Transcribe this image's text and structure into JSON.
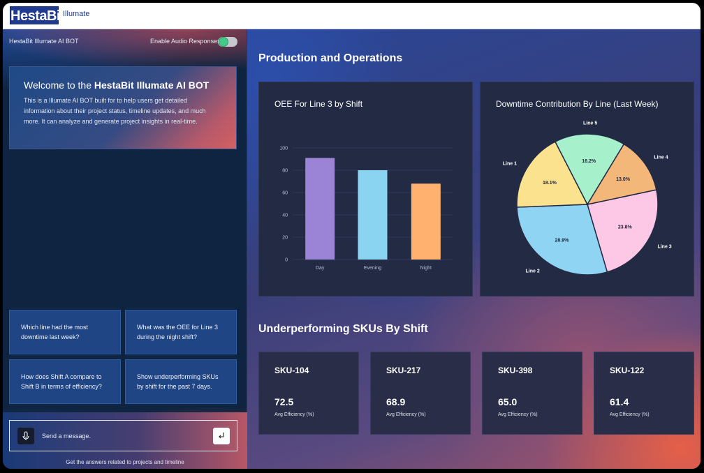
{
  "header": {
    "logo_text": "HestaBit",
    "product_name": "Illumate"
  },
  "chat": {
    "bot_name": "HestaBit Illumate AI BOT",
    "audio_label": "Enable Audio Responses",
    "audio_enabled": true,
    "welcome_prefix": "Welcome to the ",
    "welcome_brand": "HestaBit Illumate AI BOT",
    "welcome_body": "This is a Illumate AI BOT built for to help users get detailed information about their project status, timeline updates, and much more. It can analyze and generate project insights in real-time.",
    "suggestions": [
      "Which line had the most downtime last week?",
      "What was the OEE for Line 3 during the night shift?",
      "How does Shift A compare to Shift B in terms of efficiency?",
      "Show underperforming SKUs by shift for the past 7 days."
    ],
    "input_placeholder": "Send a message.",
    "hint": "Get the answers related to projects and timeline",
    "icons": {
      "mic": "microphone-icon",
      "send": "enter-arrow-icon"
    }
  },
  "main": {
    "section1_title": "Production and Operations",
    "section2_title": "Underperforming SKUs By Shift",
    "bar_title": "OEE For Line 3 by Shift",
    "pie_title": "Downtime Contribution By Line (Last Week)",
    "skus": [
      {
        "name": "SKU-104",
        "value": "72.5",
        "label": "Avg Efficiency (%)"
      },
      {
        "name": "SKU-217",
        "value": "68.9",
        "label": "Avg Efficiency (%)"
      },
      {
        "name": "SKU-398",
        "value": "65.0",
        "label": "Avg Efficiency (%)"
      },
      {
        "name": "SKU-122",
        "value": "61.4",
        "label": "Avg Efficiency (%)"
      }
    ]
  },
  "chart_data": [
    {
      "type": "bar",
      "title": "OEE For Line 3 by Shift",
      "categories": [
        "Day",
        "Evening",
        "Night"
      ],
      "values": [
        91,
        80,
        68
      ],
      "colors": [
        "#9b84d6",
        "#8ad4f2",
        "#ffb170"
      ],
      "yticks": [
        0,
        20,
        40,
        60,
        80,
        100
      ],
      "ylim": [
        0,
        100
      ],
      "grid": true,
      "legend": "none"
    },
    {
      "type": "pie",
      "title": "Downtime Contribution By Line (Last Week)",
      "start_angle_deg": -12,
      "slices": [
        {
          "name": "Line 3",
          "value": 23.8,
          "label": "23.8%",
          "color": "#fcc8e6"
        },
        {
          "name": "Line 2",
          "value": 28.9,
          "label": "28.9%",
          "color": "#8fd4f2"
        },
        {
          "name": "Line 1",
          "value": 18.1,
          "label": "18.1%",
          "color": "#fbe28e"
        },
        {
          "name": "Line 5",
          "value": 16.2,
          "label": "16.2%",
          "color": "#a6f0cc"
        },
        {
          "name": "Line 4",
          "value": 13.0,
          "label": "13.0%",
          "color": "#f3b77a"
        }
      ],
      "legend": "none"
    }
  ]
}
